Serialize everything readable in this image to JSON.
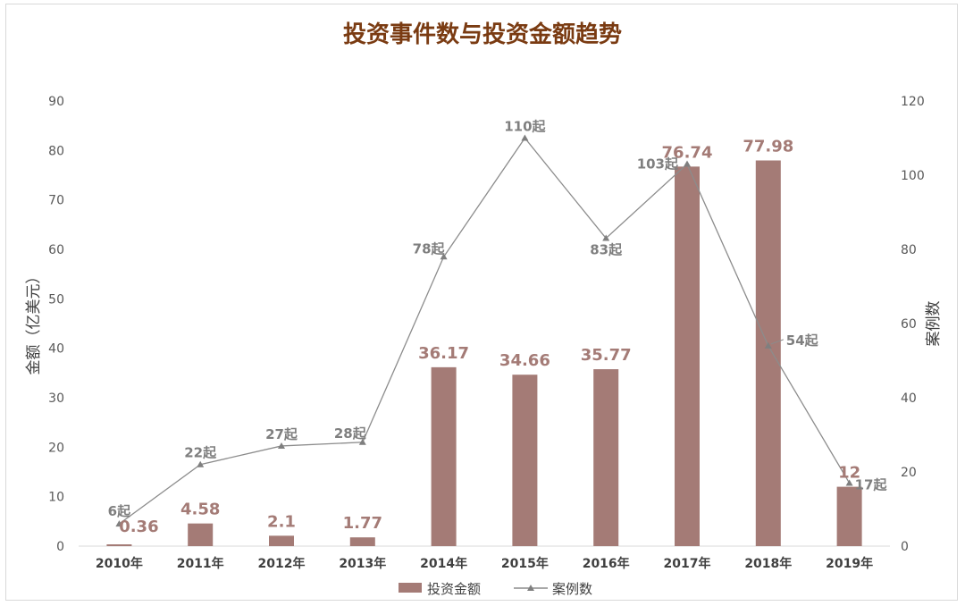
{
  "chart_data": {
    "type": "bar",
    "title": "投资事件数与投资金额趋势",
    "categories": [
      "2010年",
      "2011年",
      "2012年",
      "2013年",
      "2014年",
      "2015年",
      "2016年",
      "2017年",
      "2018年",
      "2019年"
    ],
    "series": [
      {
        "name": "投资金额",
        "type": "bar",
        "axis": "left",
        "values": [
          0.36,
          4.58,
          2.1,
          1.77,
          36.17,
          34.66,
          35.77,
          76.74,
          77.98,
          12
        ],
        "labels": [
          "0.36",
          "4.58",
          "2.1",
          "1.77",
          "36.17",
          "34.66",
          "35.77",
          "76.74",
          "77.98",
          "12"
        ]
      },
      {
        "name": "案例数",
        "type": "line",
        "axis": "right",
        "values": [
          6,
          22,
          27,
          28,
          78,
          110,
          83,
          103,
          54,
          17
        ],
        "labels": [
          "6起",
          "22起",
          "27起",
          "28起",
          "78起",
          "110起",
          "83起",
          "103起",
          "54起",
          "17起"
        ]
      }
    ],
    "ylabel": "金额（亿美元）",
    "ylabel_right": "案例数",
    "ylim": [
      0,
      90
    ],
    "yticks": [
      "0",
      "10",
      "20",
      "30",
      "40",
      "50",
      "60",
      "70",
      "80",
      "90"
    ],
    "ylim_right": [
      0,
      120
    ],
    "yticks_right": [
      "0",
      "20",
      "40",
      "60",
      "80",
      "100",
      "120"
    ],
    "grid": false,
    "legend_position": "bottom",
    "colors": {
      "bar": "#a47b76",
      "line": "#8c8c8c",
      "title": "#7a3b12"
    }
  }
}
